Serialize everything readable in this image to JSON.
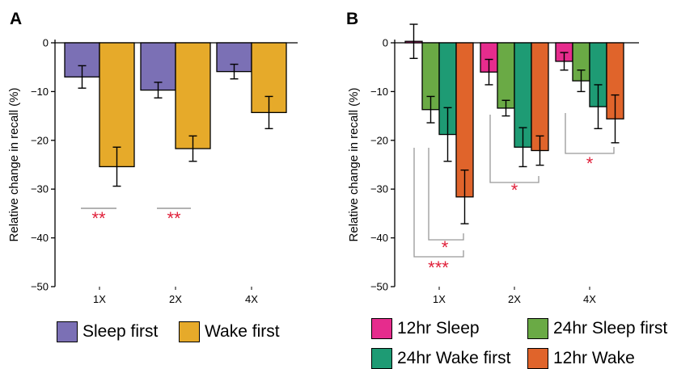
{
  "chart_data": [
    {
      "panel_label": "A",
      "type": "bar",
      "ylabel": "Relative change in recall (%)",
      "xlabel": "",
      "ylim": [
        -50,
        0
      ],
      "yticks": [
        0,
        -10,
        -20,
        -30,
        -40,
        -50
      ],
      "categories": [
        "1X",
        "2X",
        "4X"
      ],
      "series": [
        {
          "name": "Sleep first",
          "color": "#7b70b5",
          "values": [
            -7.0,
            -9.7,
            -5.9
          ],
          "errors": [
            2.3,
            1.6,
            1.5
          ]
        },
        {
          "name": "Wake first",
          "color": "#e6aa2a",
          "values": [
            -25.4,
            -21.7,
            -14.3
          ],
          "errors": [
            4.0,
            2.6,
            3.3
          ]
        }
      ],
      "significance": [
        {
          "category": "1X",
          "label": "**"
        },
        {
          "category": "2X",
          "label": "**"
        }
      ],
      "grid": false,
      "legend_position": "bottom"
    },
    {
      "panel_label": "B",
      "type": "bar",
      "ylabel": "Relative change in recall (%)",
      "xlabel": "",
      "ylim": [
        -50,
        0
      ],
      "yticks": [
        0,
        -10,
        -20,
        -30,
        -40,
        -50
      ],
      "categories": [
        "1X",
        "2X",
        "4X"
      ],
      "series": [
        {
          "name": "12hr Sleep",
          "color": "#e62c8d",
          "values": [
            0.3,
            -6.0,
            -3.8
          ],
          "errors": [
            3.5,
            2.6,
            1.8
          ]
        },
        {
          "name": "24hr Sleep first",
          "color": "#6aaa45",
          "values": [
            -13.7,
            -13.4,
            -7.8
          ],
          "errors": [
            2.7,
            1.6,
            2.2
          ]
        },
        {
          "name": "24hr Wake first",
          "color": "#1e9b74",
          "values": [
            -18.8,
            -21.4,
            -13.1
          ],
          "errors": [
            5.5,
            4.0,
            4.5
          ]
        },
        {
          "name": "12hr Wake",
          "color": "#e0642b",
          "values": [
            -31.6,
            -22.1,
            -15.6
          ],
          "errors": [
            5.5,
            3.0,
            4.9
          ]
        }
      ],
      "significance": [
        {
          "category": "1X",
          "compare": [
            "24hr Sleep first",
            "12hr Wake"
          ],
          "label": "*"
        },
        {
          "category": "1X",
          "compare": [
            "12hr Sleep",
            "12hr Wake"
          ],
          "label": "***"
        },
        {
          "category": "2X",
          "compare": [
            "24hr Sleep first",
            "12hr Wake"
          ],
          "label": "*"
        },
        {
          "category": "4X",
          "compare": [
            "24hr Sleep first",
            "12hr Wake"
          ],
          "label": "*"
        }
      ],
      "grid": false,
      "legend_position": "bottom"
    }
  ]
}
